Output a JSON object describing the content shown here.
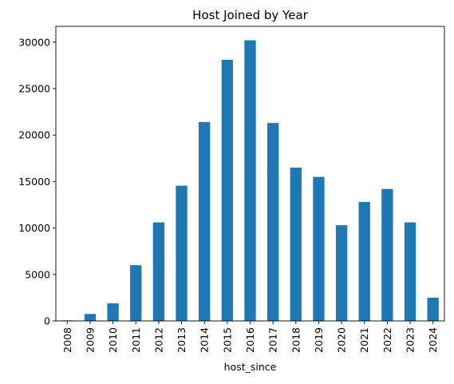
{
  "chart_data": {
    "type": "bar",
    "title": "Host Joined by Year",
    "xlabel": "host_since",
    "ylabel": "",
    "categories": [
      "2008",
      "2009",
      "2010",
      "2011",
      "2012",
      "2013",
      "2014",
      "2015",
      "2016",
      "2017",
      "2018",
      "2019",
      "2020",
      "2021",
      "2022",
      "2023",
      "2024"
    ],
    "values": [
      60,
      750,
      1900,
      6000,
      10600,
      14550,
      21400,
      28100,
      30200,
      21300,
      16500,
      15500,
      10300,
      12800,
      14200,
      10600,
      2500
    ],
    "ylim": [
      0,
      31700
    ],
    "yticks": [
      0,
      5000,
      10000,
      15000,
      20000,
      25000,
      30000
    ],
    "ytick_labels": [
      "0",
      "5000",
      "10000",
      "15000",
      "20000",
      "25000",
      "30000"
    ],
    "grid": false,
    "legend": "none",
    "bar_color": "#1f77b4"
  }
}
